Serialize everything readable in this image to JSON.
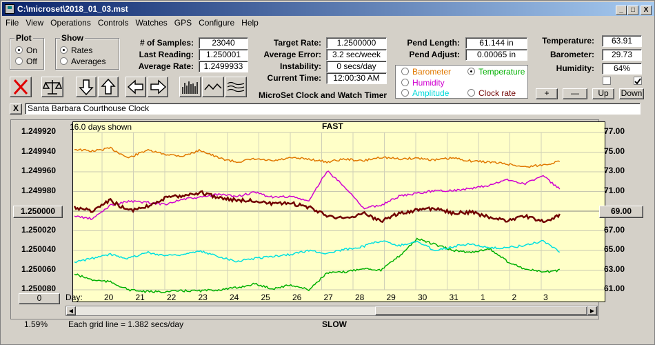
{
  "window": {
    "title": "C:\\microset\\2018_01_03.mst",
    "minimize_label": "_",
    "maximize_label": "□",
    "close_label": "X"
  },
  "menu": [
    "File",
    "View",
    "Operations",
    "Controls",
    "Watches",
    "GPS",
    "Configure",
    "Help"
  ],
  "plot_group": {
    "title": "Plot",
    "on_label": "On",
    "off_label": "Off",
    "selected": "On"
  },
  "show_group": {
    "title": "Show",
    "rates_label": "Rates",
    "averages_label": "Averages",
    "selected": "Rates"
  },
  "stats": {
    "samples_label": "# of Samples:",
    "samples": "23040",
    "last_reading_label": "Last Reading:",
    "last_reading": "1.250001",
    "average_rate_label": "Average Rate:",
    "average_rate": "1.2499933",
    "target_rate_label": "Target Rate:",
    "target_rate": "1.2500000",
    "average_error_label": "Average Error:",
    "average_error": "3.2 sec/week",
    "instability_label": "Instability:",
    "instability": "0 secs/day",
    "current_time_label": "Current Time:",
    "current_time": "12:00:30 AM",
    "pend_length_label": "Pend Length:",
    "pend_length": "61.144 in",
    "pend_adjust_label": "Pend Adjust:",
    "pend_adjust": "0.00065 in",
    "temperature_label": "Temperature:",
    "temperature": "63.91",
    "barometer_label": "Barometer:",
    "barometer": "29.73",
    "humidity_label": "Humidity:",
    "humidity": "64%"
  },
  "app_title": "MicroSet Clock and Watch Timer",
  "legend": {
    "barometer": "Barometer",
    "temperature": "Temperature",
    "humidity": "Humidity",
    "amplitude": "Amplitude",
    "clock_rate": "Clock rate",
    "selected": "Temperature"
  },
  "adjust_buttons": {
    "plus": "+",
    "minus": "—",
    "up": "Up",
    "down": "Down"
  },
  "clock_name": "Santa Barbara Courthouse Clock",
  "clear_label": "X",
  "plot": {
    "days_shown": "16.0 days shown",
    "fast_label": "FAST",
    "slow_label": "SLOW",
    "grid_note": "Each grid line = 1.382 secs/day",
    "percent": "1.59%",
    "left_center_button": "1.250000",
    "right_center_button": "69.00",
    "zero_button": "0",
    "day_label": "Day:"
  },
  "colors": {
    "barometer": "#e07800",
    "temperature": "#00b000",
    "humidity": "#d000d0",
    "amplitude": "#00e0e0",
    "clock_rate": "#700000",
    "plot_bg": "#ffffc8"
  },
  "chart_data": {
    "type": "line",
    "left_axis": {
      "ticks": [
        "1.249920",
        "1.249940",
        "1.249960",
        "1.249980",
        "1.250000",
        "1.250020",
        "1.250040",
        "1.250060",
        "1.250080"
      ],
      "lim": [
        1.24992,
        1.25008
      ],
      "inverted": true
    },
    "right_axis": {
      "ticks": [
        "77.00",
        "75.00",
        "73.00",
        "71.00",
        "69.00",
        "67.00",
        "65.00",
        "63.00",
        "61.00"
      ],
      "lim": [
        61,
        77
      ]
    },
    "x_ticks": [
      "20",
      "21",
      "22",
      "23",
      "24",
      "25",
      "26",
      "27",
      "28",
      "29",
      "30",
      "31",
      "1",
      "2",
      "3"
    ],
    "series": [
      {
        "color": "#e07800",
        "values": [
          1.249937,
          1.249939,
          1.249936,
          1.249946,
          1.249938,
          1.249942,
          1.249944,
          1.249938,
          1.249946,
          1.24995,
          1.249947,
          1.249949,
          1.249946,
          1.249947,
          1.24995,
          1.249947,
          1.249949,
          1.249945,
          1.249947,
          1.249946,
          1.249948,
          1.249946,
          1.249949,
          1.24995,
          1.249952,
          1.249955,
          1.249953,
          1.249949
        ]
      },
      {
        "color": "#00b000",
        "values": [
          1.250064,
          1.25007,
          1.250072,
          1.25008,
          1.250082,
          1.250082,
          1.250081,
          1.250081,
          1.25008,
          1.250078,
          1.250074,
          1.250079,
          1.250075,
          1.25008,
          1.250063,
          1.250062,
          1.250058,
          1.25006,
          1.250046,
          1.250028,
          1.250034,
          1.25004,
          1.250042,
          1.250038,
          1.250051,
          1.250059,
          1.250062,
          1.25006
        ]
      },
      {
        "color": "#d000d0",
        "values": [
          1.250005,
          1.250008,
          1.249994,
          1.24999,
          1.249991,
          1.249993,
          1.249988,
          1.249986,
          1.249983,
          1.249985,
          1.249981,
          1.249986,
          1.249985,
          1.24999,
          1.249959,
          1.249975,
          1.249997,
          1.249994,
          1.249985,
          1.249982,
          1.249979,
          1.249979,
          1.249977,
          1.249974,
          1.249968,
          1.249972,
          1.249964,
          1.249979
        ]
      },
      {
        "color": "#00e0e0",
        "values": [
          1.250052,
          1.250048,
          1.250044,
          1.250048,
          1.250042,
          1.250045,
          1.250044,
          1.250041,
          1.250046,
          1.250051,
          1.250048,
          1.250046,
          1.250044,
          1.25004,
          1.250043,
          1.250039,
          1.250036,
          1.25003,
          1.250035,
          1.250031,
          1.25004,
          1.250036,
          1.250033,
          1.250038,
          1.250037,
          1.250035,
          1.25003,
          1.250042
        ]
      },
      {
        "color": "#700000",
        "values": [
          1.249996,
          1.25,
          1.249989,
          1.25,
          1.249995,
          1.249987,
          1.249984,
          1.249981,
          1.249986,
          1.249989,
          1.249989,
          1.249993,
          1.249992,
          1.249996,
          1.250004,
          1.250008,
          1.250002,
          1.25001,
          1.250002,
          1.249999,
          1.249997,
          1.250002,
          1.250001,
          1.250006,
          1.25001,
          1.250005,
          1.250011,
          1.250003
        ]
      }
    ]
  }
}
